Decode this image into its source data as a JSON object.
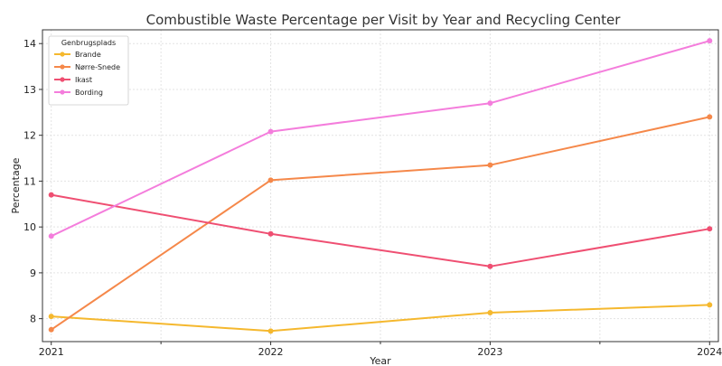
{
  "chart_data": {
    "type": "line",
    "title": "Combustible Waste Percentage per Visit by Year and Recycling Center",
    "xlabel": "Year",
    "ylabel": "Percentage",
    "x": [
      2021,
      2022,
      2023,
      2024
    ],
    "xticks": [
      "2021",
      "2022",
      "2023",
      "2024"
    ],
    "ylim": [
      7.5,
      14.3
    ],
    "yticks": [
      8,
      9,
      10,
      11,
      12,
      13,
      14
    ],
    "grid": true,
    "legend": {
      "title": "Genbrugsplads",
      "position": "top-left"
    },
    "series": [
      {
        "name": "Brande",
        "color": "#f5b82e",
        "values": [
          8.05,
          7.73,
          8.13,
          8.3
        ]
      },
      {
        "name": "Nørre-Snede",
        "color": "#f5884a",
        "values": [
          7.76,
          11.02,
          11.35,
          12.4
        ]
      },
      {
        "name": "Ikast",
        "color": "#ef4f72",
        "values": [
          10.7,
          9.85,
          9.14,
          9.96
        ]
      },
      {
        "name": "Bording",
        "color": "#f47ddc",
        "values": [
          9.8,
          12.08,
          12.7,
          14.06
        ]
      }
    ]
  }
}
